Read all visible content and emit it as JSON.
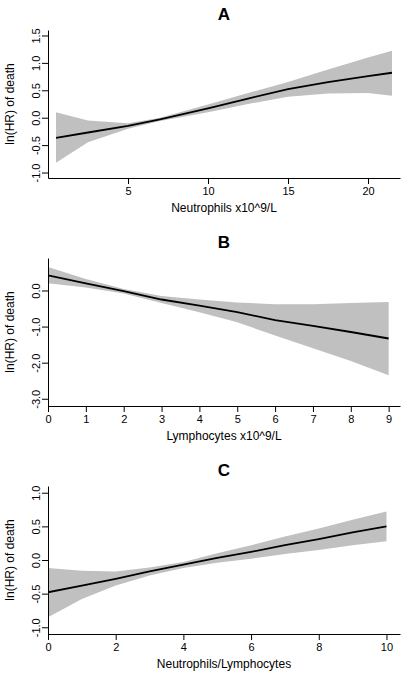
{
  "chart_data": [
    {
      "type": "line",
      "title": "A",
      "xlabel": "Neutrophils x10^9/L",
      "ylabel": "ln(HR) of death",
      "x": [
        0.5,
        2.5,
        5,
        7,
        10,
        12.5,
        15,
        17.5,
        20,
        21.5
      ],
      "values": [
        -0.37,
        -0.27,
        -0.15,
        -0.03,
        0.17,
        0.35,
        0.52,
        0.65,
        0.76,
        0.82
      ],
      "lower": [
        -0.82,
        -0.45,
        -0.2,
        -0.06,
        0.1,
        0.25,
        0.38,
        0.44,
        0.45,
        0.4
      ],
      "upper": [
        0.1,
        -0.05,
        -0.1,
        0.0,
        0.24,
        0.45,
        0.65,
        0.88,
        1.1,
        1.22
      ],
      "color": "#000000",
      "xlim": [
        0,
        22
      ],
      "xticks": [
        5,
        10,
        15,
        20
      ],
      "ylim": [
        -1.1,
        1.6
      ],
      "yticks": [
        {
          "value": -1,
          "label": "-1.0"
        },
        {
          "value": -0.5,
          "label": "-0.5"
        },
        {
          "value": 0,
          "label": "0.0"
        },
        {
          "value": 0.5,
          "label": "0.5"
        },
        {
          "value": 1,
          "label": "1.0"
        },
        {
          "value": 1.5,
          "label": "1.5"
        }
      ]
    },
    {
      "type": "line",
      "title": "B",
      "xlabel": "Lymphocytes x10^9/L",
      "ylabel": "ln(HR) of death",
      "x": [
        0,
        1,
        2,
        3,
        4,
        5,
        6,
        7,
        8,
        9
      ],
      "values": [
        0.42,
        0.2,
        -0.02,
        -0.25,
        -0.42,
        -0.6,
        -0.82,
        -0.98,
        -1.15,
        -1.33
      ],
      "lower": [
        0.2,
        0.08,
        -0.08,
        -0.35,
        -0.6,
        -0.88,
        -1.25,
        -1.6,
        -1.95,
        -2.35
      ],
      "upper": [
        0.65,
        0.32,
        0.04,
        -0.15,
        -0.25,
        -0.33,
        -0.38,
        -0.38,
        -0.35,
        -0.32
      ],
      "color": "#000000",
      "xlim": [
        0,
        9.3
      ],
      "xticks": [
        0,
        1,
        2,
        3,
        4,
        5,
        6,
        7,
        8,
        9
      ],
      "ylim": [
        -3.2,
        0.9
      ],
      "yticks": [
        {
          "value": -3,
          "label": "-3.0"
        },
        {
          "value": -2,
          "label": "-2.0"
        },
        {
          "value": -1,
          "label": "-1.0"
        },
        {
          "value": 0,
          "label": "0.0"
        }
      ]
    },
    {
      "type": "line",
      "title": "C",
      "xlabel": "Neutrophils/Lymphocytes",
      "ylabel": "ln(HR) of death",
      "x": [
        0,
        1,
        2,
        3,
        4,
        5,
        6,
        7,
        8,
        9,
        10
      ],
      "values": [
        -0.48,
        -0.38,
        -0.28,
        -0.17,
        -0.07,
        0.03,
        0.12,
        0.22,
        0.31,
        0.41,
        0.5
      ],
      "lower": [
        -0.85,
        -0.58,
        -0.38,
        -0.23,
        -0.12,
        -0.04,
        0.02,
        0.09,
        0.15,
        0.22,
        0.28
      ],
      "upper": [
        -0.12,
        -0.16,
        -0.17,
        -0.11,
        -0.03,
        0.1,
        0.22,
        0.35,
        0.47,
        0.6,
        0.72
      ],
      "color": "#000000",
      "xlim": [
        0,
        10.4
      ],
      "xticks": [
        0,
        2,
        4,
        6,
        8,
        10
      ],
      "ylim": [
        -1.1,
        1.1
      ],
      "yticks": [
        {
          "value": -1,
          "label": "-1.0"
        },
        {
          "value": -0.5,
          "label": "-0.5"
        },
        {
          "value": 0,
          "label": "0.0"
        },
        {
          "value": 0.5,
          "label": "0.5"
        },
        {
          "value": 1,
          "label": "1.0"
        }
      ]
    }
  ]
}
